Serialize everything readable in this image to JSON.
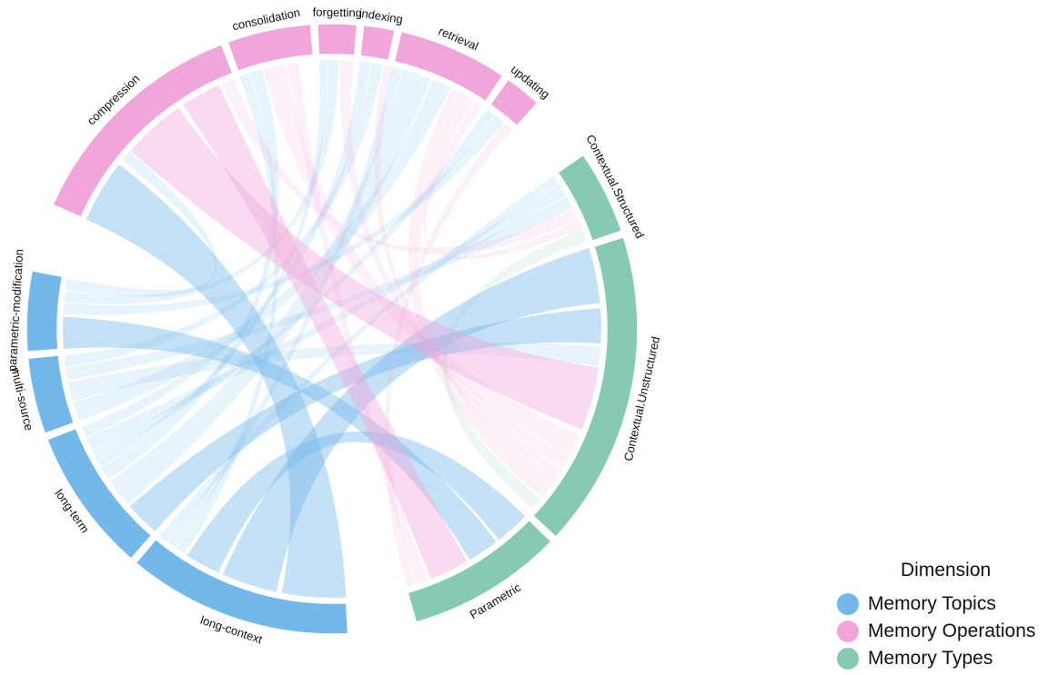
{
  "chart_data": {
    "type": "chord",
    "title": "",
    "segments": [
      {
        "name": "compression",
        "dimension": "Memory Operations",
        "weight": 12
      },
      {
        "name": "consolidation",
        "dimension": "Memory Operations",
        "weight": 4.3
      },
      {
        "name": "forgetting",
        "dimension": "Memory Operations",
        "weight": 2.0
      },
      {
        "name": "indexing",
        "dimension": "Memory Operations",
        "weight": 1.6
      },
      {
        "name": "retrieval",
        "dimension": "Memory Operations",
        "weight": 5.6
      },
      {
        "name": "updating",
        "dimension": "Memory Operations",
        "weight": 1.9
      },
      {
        "name": "Contextual.Structured",
        "dimension": "Memory Types",
        "weight": 4.3
      },
      {
        "name": "Contextual.Unstructured",
        "dimension": "Memory Types",
        "weight": 16.2
      },
      {
        "name": "Parametric",
        "dimension": "Memory Types",
        "weight": 8.0
      },
      {
        "name": "long-context",
        "dimension": "Memory Topics",
        "weight": 11.5
      },
      {
        "name": "long-term",
        "dimension": "Memory Topics",
        "weight": 7.4
      },
      {
        "name": "multi-source",
        "dimension": "Memory Topics",
        "weight": 3.9
      },
      {
        "name": "parametric-modification",
        "dimension": "Memory Topics",
        "weight": 4.1
      }
    ],
    "links": [
      {
        "source": "long-context",
        "target": "compression",
        "value": 4.0
      },
      {
        "source": "long-context",
        "target": "Contextual.Unstructured",
        "value": 3.5
      },
      {
        "source": "long-context",
        "target": "Parametric",
        "value": 2.2
      },
      {
        "source": "long-context",
        "target": "consolidation",
        "value": 0.6
      },
      {
        "source": "long-context",
        "target": "retrieval",
        "value": 0.6
      },
      {
        "source": "long-context",
        "target": "Contextual.Structured",
        "value": 0.6
      },
      {
        "source": "long-term",
        "target": "Contextual.Unstructured",
        "value": 2.2
      },
      {
        "source": "long-term",
        "target": "retrieval",
        "value": 1.8
      },
      {
        "source": "long-term",
        "target": "consolidation",
        "value": 0.8
      },
      {
        "source": "long-term",
        "target": "forgetting",
        "value": 0.5
      },
      {
        "source": "long-term",
        "target": "updating",
        "value": 0.6
      },
      {
        "source": "long-term",
        "target": "Contextual.Structured",
        "value": 0.8
      },
      {
        "source": "long-term",
        "target": "indexing",
        "value": 0.7
      },
      {
        "source": "multi-source",
        "target": "retrieval",
        "value": 1.2
      },
      {
        "source": "multi-source",
        "target": "Contextual.Unstructured",
        "value": 1.2
      },
      {
        "source": "multi-source",
        "target": "Contextual.Structured",
        "value": 0.8
      },
      {
        "source": "multi-source",
        "target": "indexing",
        "value": 0.7
      },
      {
        "source": "parametric-modification",
        "target": "Parametric",
        "value": 2.0
      },
      {
        "source": "parametric-modification",
        "target": "updating",
        "value": 0.7
      },
      {
        "source": "parametric-modification",
        "target": "forgetting",
        "value": 0.7
      },
      {
        "source": "parametric-modification",
        "target": "compression",
        "value": 0.7
      },
      {
        "source": "compression",
        "target": "Contextual.Unstructured",
        "value": 4.0
      },
      {
        "source": "compression",
        "target": "Parametric",
        "value": 2.5
      },
      {
        "source": "compression",
        "target": "Contextual.Structured",
        "value": 0.8
      },
      {
        "source": "consolidation",
        "target": "Contextual.Unstructured",
        "value": 1.4
      },
      {
        "source": "consolidation",
        "target": "Parametric",
        "value": 0.7
      },
      {
        "source": "forgetting",
        "target": "Contextual.Unstructured",
        "value": 0.8
      },
      {
        "source": "indexing",
        "target": "Contextual.Unstructured",
        "value": 0.6
      },
      {
        "source": "retrieval",
        "target": "Contextual.Unstructured",
        "value": 1.5
      },
      {
        "source": "retrieval",
        "target": "Contextual.Structured",
        "value": 0.5
      },
      {
        "source": "updating",
        "target": "Parametric",
        "value": 0.6
      },
      {
        "source": "Contextual.Structured",
        "target": "Contextual.Unstructured",
        "value": 0.8
      }
    ]
  },
  "legend": {
    "title": "Dimension",
    "items": [
      {
        "label": "Memory Topics",
        "color": "#72B8EA"
      },
      {
        "label": "Memory Operations",
        "color": "#F0A6DB"
      },
      {
        "label": "Memory Types",
        "color": "#86CAB5"
      }
    ]
  }
}
